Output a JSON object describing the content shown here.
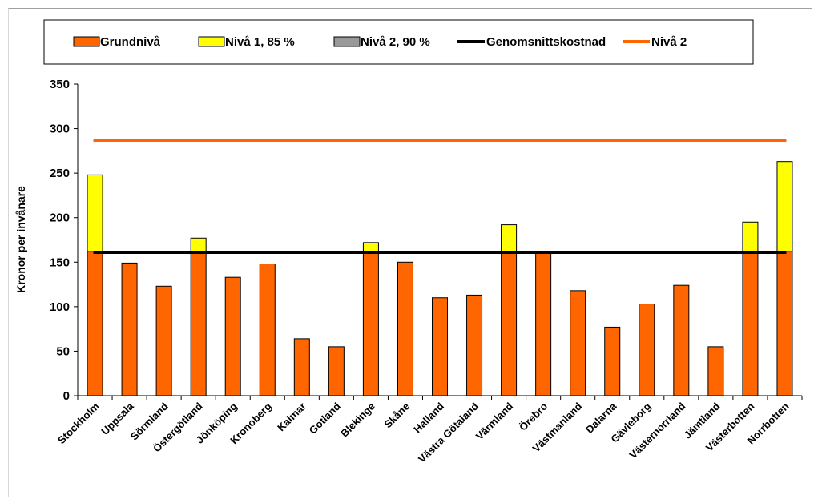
{
  "chart_data": {
    "type": "bar",
    "stacked": true,
    "title": "",
    "xlabel": "",
    "ylabel": "Kronor per invånare",
    "ylim": [
      0,
      350
    ],
    "yticks": [
      0,
      50,
      100,
      150,
      200,
      250,
      300,
      350
    ],
    "grid": false,
    "legend_position": "top",
    "categories": [
      "Stockholm",
      "Uppsala",
      "Sörmland",
      "Östergötland",
      "Jönköping",
      "Kronoberg",
      "Kalmar",
      "Gotland",
      "Blekinge",
      "Skåne",
      "Halland",
      "Västra Götaland",
      "Värmland",
      "Örebro",
      "Västmanland",
      "Dalarna",
      "Gävleborg",
      "Västernorrland",
      "Jämtland",
      "Västerbotten",
      "Norrbotten"
    ],
    "series": [
      {
        "name": "Grundnivå",
        "kind": "bar",
        "color": "#ff6600",
        "values": [
          162,
          149,
          123,
          162,
          133,
          148,
          64,
          55,
          162,
          150,
          110,
          113,
          162,
          160,
          118,
          77,
          103,
          124,
          55,
          162,
          162
        ]
      },
      {
        "name": "Nivå 1, 85 %",
        "kind": "bar",
        "color": "#ffff00",
        "values": [
          86,
          0,
          0,
          15,
          0,
          0,
          0,
          0,
          10,
          0,
          0,
          0,
          30,
          0,
          0,
          0,
          0,
          0,
          0,
          33,
          101
        ]
      },
      {
        "name": "Nivå 2, 90 %",
        "kind": "bar",
        "color": "#999999",
        "values": [
          0,
          0,
          0,
          0,
          0,
          0,
          0,
          0,
          0,
          0,
          0,
          0,
          0,
          0,
          0,
          0,
          0,
          0,
          0,
          0,
          0
        ]
      },
      {
        "name": "Genomsnittskostnad",
        "kind": "line",
        "color": "#000000",
        "value": 161
      },
      {
        "name": "Nivå 2",
        "kind": "line",
        "color": "#ff6600",
        "value": 287
      }
    ]
  }
}
